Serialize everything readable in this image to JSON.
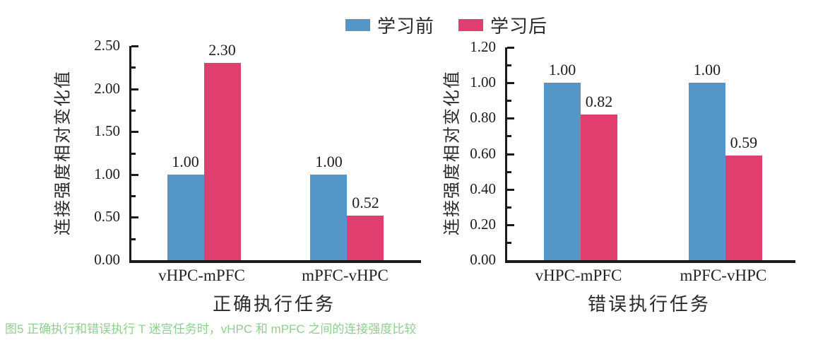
{
  "figure": {
    "caption": "图5 正确执行和错误执行 T 迷宫任务时，vHPC 和 mPFC 之间的连接强度比较",
    "caption_color": "#90CE90",
    "axis_color": "#1b1b1b"
  },
  "chart_data": [
    {
      "type": "bar",
      "title": "",
      "xlabel": "正确执行任务",
      "ylabel": "连接强度相对变化值",
      "ylim": [
        0,
        2.5
      ],
      "yticks": [
        "0.00",
        "0.50",
        "1.00",
        "1.50",
        "2.00",
        "2.50"
      ],
      "grid": false,
      "legend_position": "top-center",
      "categories": [
        "vHPC-mPFC",
        "mPFC-vHPC"
      ],
      "series": [
        {
          "name": "学习前",
          "color": "#5596C8",
          "values": [
            1.0,
            1.0
          ],
          "labels": [
            "1.00",
            "1.00"
          ]
        },
        {
          "name": "学习后",
          "color": "#E03E6E",
          "values": [
            2.3,
            0.52
          ],
          "labels": [
            "2.30",
            "0.52"
          ]
        }
      ]
    },
    {
      "type": "bar",
      "title": "",
      "xlabel": "错误执行任务",
      "ylabel": "连接强度相对变化值",
      "ylim": [
        0,
        1.2
      ],
      "yticks": [
        "0.00",
        "0.20",
        "0.40",
        "0.60",
        "0.80",
        "1.00",
        "1.20"
      ],
      "grid": false,
      "legend_position": "top-center",
      "categories": [
        "vHPC-mPFC",
        "mPFC-vHPC"
      ],
      "series": [
        {
          "name": "学习前",
          "color": "#5596C8",
          "values": [
            1.0,
            1.0
          ],
          "labels": [
            "1.00",
            "1.00"
          ]
        },
        {
          "name": "学习后",
          "color": "#E03E6E",
          "values": [
            0.82,
            0.59
          ],
          "labels": [
            "0.82",
            "0.59"
          ]
        }
      ]
    }
  ]
}
